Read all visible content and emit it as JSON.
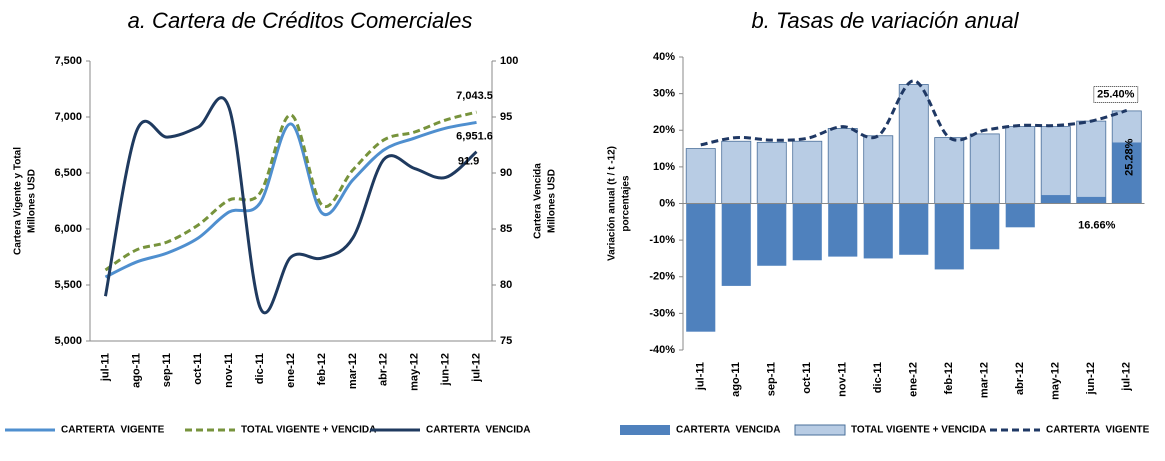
{
  "chart_data": [
    {
      "type": "line",
      "title": "a. Cartera de Créditos Comerciales",
      "ylabel": [
        "Cartera Vigente y Total",
        "Millones USD"
      ],
      "y2label": [
        "Cartera Vencida",
        "Millones USD"
      ],
      "categories": [
        "jul-11",
        "ago-11",
        "sep-11",
        "oct-11",
        "nov-11",
        "dic-11",
        "ene-12",
        "feb-12",
        "mar-12",
        "abr-12",
        "may-12",
        "jun-12",
        "jul-12"
      ],
      "series": [
        {
          "name": "CARTERTA  VIGENTE",
          "color": "#4f8fcf",
          "style": "solid",
          "values": [
            5571,
            5705,
            5786,
            5920,
            6152,
            6232,
            6938,
            6143,
            6438,
            6705,
            6812,
            6900,
            6951.6
          ],
          "value_labels": [
            null,
            null,
            null,
            null,
            null,
            null,
            null,
            null,
            null,
            null,
            null,
            null,
            "6,951.6"
          ]
        },
        {
          "name": "TOTAL VIGENTE + VENCIDA",
          "color": "#77933c",
          "style": "dashed",
          "values": [
            5634,
            5813,
            5884,
            6036,
            6259,
            6321,
            7018,
            6214,
            6527,
            6795,
            6866,
            6973,
            7043.5
          ],
          "value_labels": [
            null,
            null,
            null,
            null,
            null,
            null,
            null,
            null,
            null,
            null,
            null,
            null,
            "7,043.5"
          ]
        },
        {
          "name": "CARTERTA  VENCIDA",
          "color": "#1f3a5f",
          "style": "solid",
          "axis": "y2",
          "values": [
            79.0,
            93.7,
            93.2,
            94.1,
            95.8,
            78.0,
            82.5,
            82.4,
            84.2,
            91.2,
            90.4,
            89.6,
            91.9
          ],
          "value_labels": [
            null,
            null,
            null,
            null,
            null,
            null,
            null,
            null,
            null,
            null,
            null,
            null,
            "91.9"
          ]
        }
      ],
      "ylim": [
        5000,
        7500
      ],
      "yticks": [
        {
          "value": 5000,
          "label": "5,000"
        },
        {
          "value": 5500,
          "label": "5,500"
        },
        {
          "value": 6000,
          "label": "6,000"
        },
        {
          "value": 6500,
          "label": "6,500"
        },
        {
          "value": 7000,
          "label": "7,000"
        },
        {
          "value": 7500,
          "label": "7,500"
        }
      ],
      "y2lim": [
        75,
        100
      ],
      "y2ticks": [
        75,
        80,
        85,
        90,
        95,
        100
      ],
      "grid": false,
      "legend": "bottom"
    },
    {
      "type": "bar",
      "title": "b. Tasas de variación anual",
      "ylabel": [
        "Variación anual (t / t -12)",
        "porcentajes"
      ],
      "categories": [
        "jul-11",
        "ago-11",
        "sep-11",
        "oct-11",
        "nov-11",
        "dic-11",
        "ene-12",
        "feb-12",
        "mar-12",
        "abr-12",
        "may-12",
        "jun-12",
        "jul-12"
      ],
      "series": [
        {
          "name": "CARTERTA  VENCIDA",
          "color": "#4f81bd",
          "kind": "bar",
          "values": [
            -35,
            -22.5,
            -17,
            -15.5,
            -14.5,
            -15,
            -14,
            -18,
            -12.5,
            -6.5,
            2.3,
            1.8,
            16.66
          ],
          "value_labels": [
            null,
            null,
            null,
            null,
            null,
            null,
            null,
            null,
            null,
            null,
            null,
            null,
            "16.66%"
          ]
        },
        {
          "name": "TOTAL VIGENTE + VENCIDA",
          "color": "#b8cce4",
          "kind": "bar",
          "values": [
            15,
            17,
            16.7,
            17,
            20.5,
            18.5,
            32.5,
            18,
            19,
            21,
            21,
            22.5,
            25.28
          ],
          "value_labels": [
            null,
            null,
            null,
            null,
            null,
            null,
            null,
            null,
            null,
            null,
            null,
            null,
            "25.28%"
          ]
        },
        {
          "name": "CARTERTA  VIGENTE",
          "color": "#1f3864",
          "kind": "line",
          "style": "dashed",
          "values": [
            16,
            18,
            17.3,
            17.8,
            21,
            18.5,
            33.5,
            18,
            20,
            21.3,
            21.3,
            22.5,
            25.4
          ],
          "value_labels": [
            null,
            null,
            null,
            null,
            null,
            null,
            null,
            null,
            null,
            null,
            null,
            null,
            "25.40%"
          ]
        }
      ],
      "ylim": [
        -40,
        40
      ],
      "yticks": [
        {
          "value": -40,
          "label": "-40%"
        },
        {
          "value": -30,
          "label": "-30%"
        },
        {
          "value": -20,
          "label": "-20%"
        },
        {
          "value": -10,
          "label": "-10%"
        },
        {
          "value": 0,
          "label": "0%"
        },
        {
          "value": 10,
          "label": "10%"
        },
        {
          "value": 20,
          "label": "20%"
        },
        {
          "value": 30,
          "label": "30%"
        },
        {
          "value": 40,
          "label": "40%"
        }
      ],
      "grid": false,
      "legend": "bottom"
    }
  ]
}
